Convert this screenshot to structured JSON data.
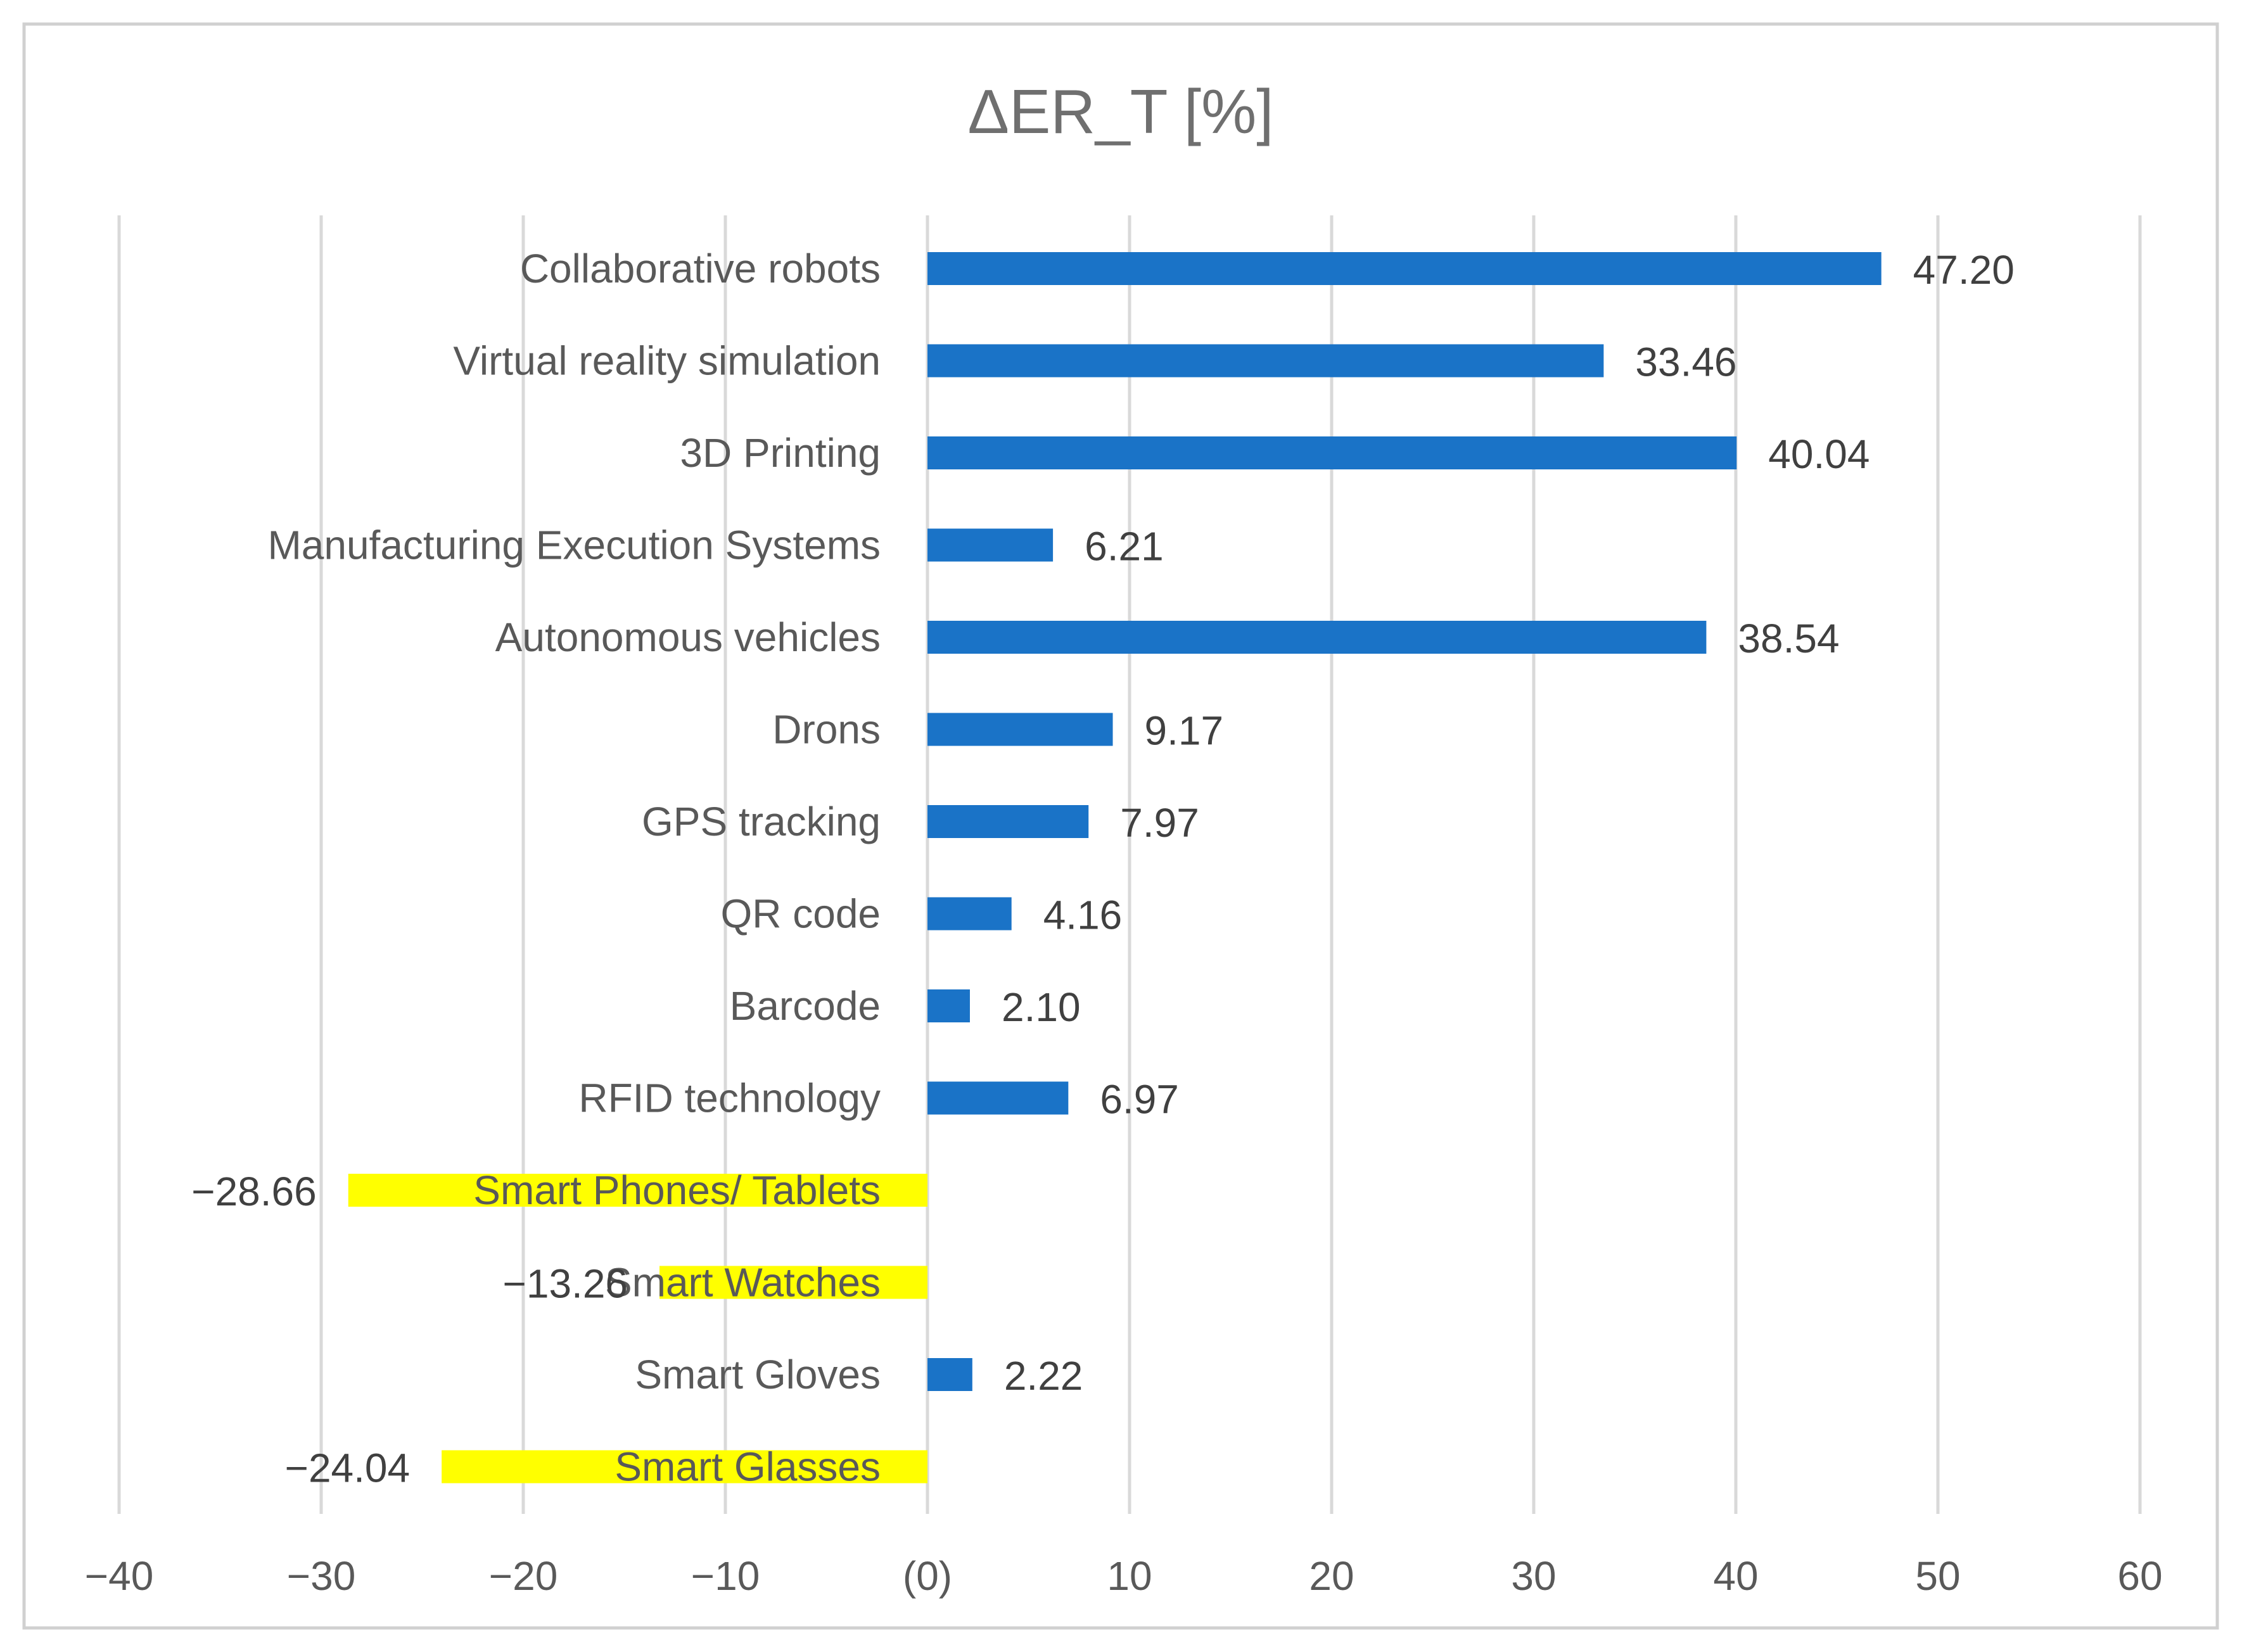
{
  "chart_data": {
    "type": "bar",
    "orientation": "horizontal",
    "title": "ΔER_T [%]",
    "xlabel": "",
    "ylabel": "",
    "xlim": [
      -40,
      60
    ],
    "grid": true,
    "legend": "none",
    "x_ticks": [
      {
        "value": -40,
        "label": "−40"
      },
      {
        "value": -30,
        "label": "−30"
      },
      {
        "value": -20,
        "label": "−20"
      },
      {
        "value": -10,
        "label": "−10"
      },
      {
        "value": 0,
        "label": "(0)"
      },
      {
        "value": 10,
        "label": "10"
      },
      {
        "value": 20,
        "label": "20"
      },
      {
        "value": 30,
        "label": "30"
      },
      {
        "value": 40,
        "label": "40"
      },
      {
        "value": 50,
        "label": "50"
      },
      {
        "value": 60,
        "label": "60"
      }
    ],
    "colors": {
      "positive": "#1a73c7",
      "negative": "#ffff00"
    },
    "bars": [
      {
        "category": "Collaborative robots",
        "value": 47.2,
        "label": "47.20"
      },
      {
        "category": "Virtual reality simulation",
        "value": 33.46,
        "label": "33.46"
      },
      {
        "category": "3D Printing",
        "value": 40.04,
        "label": "40.04"
      },
      {
        "category": "Manufacturing Execution Systems",
        "value": 6.21,
        "label": "6.21"
      },
      {
        "category": "Autonomous vehicles",
        "value": 38.54,
        "label": "38.54"
      },
      {
        "category": "Drons",
        "value": 9.17,
        "label": "9.17"
      },
      {
        "category": "GPS tracking",
        "value": 7.97,
        "label": "7.97"
      },
      {
        "category": "QR code",
        "value": 4.16,
        "label": "4.16"
      },
      {
        "category": "Barcode",
        "value": 2.1,
        "label": "2.10"
      },
      {
        "category": "RFID technology",
        "value": 6.97,
        "label": "6.97"
      },
      {
        "category": "Smart Phones/ Tablets",
        "value": -28.66,
        "label": "−28.66"
      },
      {
        "category": "Smart Watches",
        "value": -13.26,
        "label": "−13.26"
      },
      {
        "category": "Smart Gloves",
        "value": 2.22,
        "label": "2.22"
      },
      {
        "category": "Smart Glasses",
        "value": -24.04,
        "label": "−24.04"
      }
    ]
  }
}
